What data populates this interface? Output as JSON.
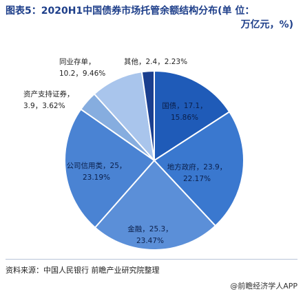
{
  "title": {
    "line1": "图表5：2020H1中国债券市场托管余额结构分布(单 位：",
    "line2": "万亿元，%)"
  },
  "source": "资料来源：中国人民银行 前瞻产业研究院整理",
  "brand": "@前瞻经济学人APP",
  "colors": {
    "inner": "#1f5bb8",
    "mid": "#3a78cf",
    "light": "#5b8fd8",
    "pale": "#8fb3e6",
    "dark": "#1a3f8f",
    "title": "#1e3f8a"
  },
  "chart_data": {
    "type": "pie",
    "title": "2020H1中国债券市场托管余额结构分布(单 位：万亿元，%)",
    "units": "万亿元，%",
    "slices": [
      {
        "name": "国债",
        "value": 17.1,
        "percent": 15.86,
        "label": "国债，17.1，\n15.86%",
        "color": "#1f5bb8"
      },
      {
        "name": "地方政府",
        "value": 23.9,
        "percent": 22.17,
        "label": "地方政府，23.9，\n22.17%",
        "color": "#3a78cf"
      },
      {
        "name": "金融",
        "value": 25.3,
        "percent": 23.47,
        "label": "金融，25.3，\n23.47%",
        "color": "#5b8fd8"
      },
      {
        "name": "公司信用类",
        "value": 25,
        "percent": 23.19,
        "label": "公司信用类，25，\n23.19%",
        "color": "#4a83d3"
      },
      {
        "name": "资产支持证券",
        "value": 3.9,
        "percent": 3.62,
        "label": "资产支持证券，\n3.9，3.62%",
        "color": "#86addf"
      },
      {
        "name": "同业存单",
        "value": 10.2,
        "percent": 9.46,
        "label": "同业存单，\n10.2，9.46%",
        "color": "#a9c5ec"
      },
      {
        "name": "其他",
        "value": 2.4,
        "percent": 2.23,
        "label": "其他，2.4，2.23%",
        "color": "#1a3f8f"
      }
    ]
  }
}
